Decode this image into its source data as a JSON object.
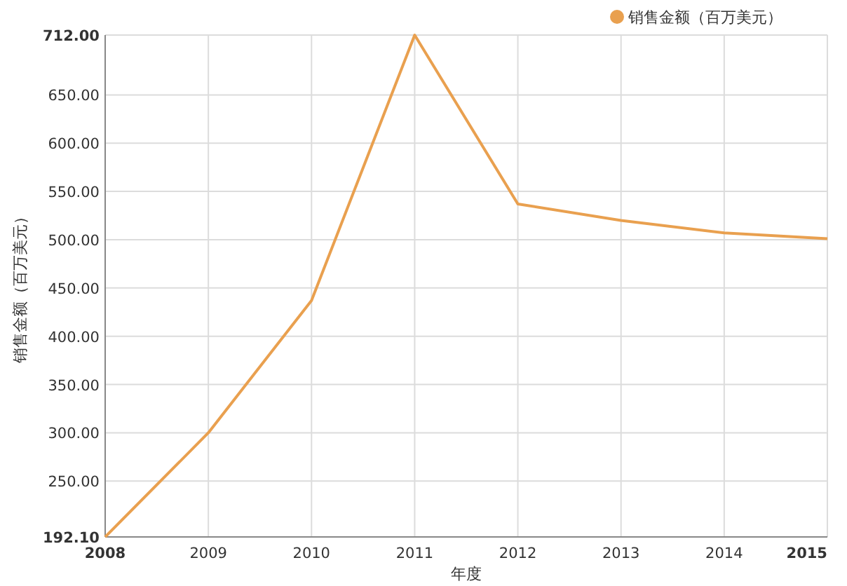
{
  "chart_data": {
    "type": "line",
    "xlabel": "年度",
    "ylabel": "销售金额（百万美元）",
    "categories": [
      "2008",
      "2009",
      "2010",
      "2011",
      "2012",
      "2013",
      "2014",
      "2015"
    ],
    "series": [
      {
        "name": "销售金额（百万美元）",
        "color": "#e9a04f",
        "values": [
          192.1,
          300,
          437,
          712,
          537,
          520,
          507,
          501
        ]
      }
    ],
    "ylim": [
      192.1,
      712
    ],
    "yticks": [
      {
        "value": 192.1,
        "label": "192.10"
      },
      {
        "value": 250,
        "label": "250.00"
      },
      {
        "value": 300,
        "label": "300.00"
      },
      {
        "value": 350,
        "label": "350.00"
      },
      {
        "value": 400,
        "label": "400.00"
      },
      {
        "value": 450,
        "label": "450.00"
      },
      {
        "value": 500,
        "label": "500.00"
      },
      {
        "value": 550,
        "label": "550.00"
      },
      {
        "value": 600,
        "label": "600.00"
      },
      {
        "value": 650,
        "label": "650.00"
      },
      {
        "value": 712,
        "label": "712.00"
      }
    ],
    "grid": true,
    "legend": "top right"
  }
}
